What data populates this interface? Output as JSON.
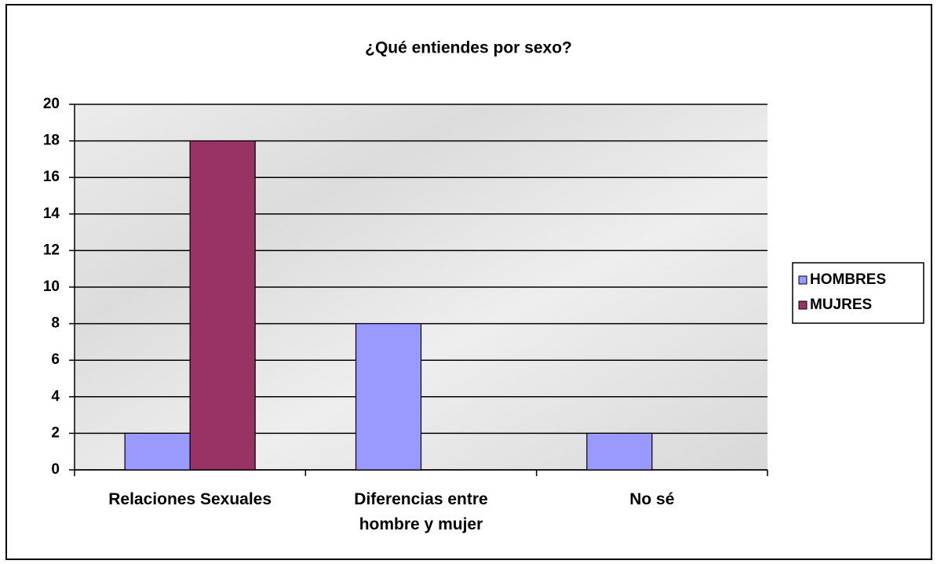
{
  "chart_data": {
    "type": "bar",
    "title": "¿Qué entiendes por sexo?",
    "categories": [
      "Relaciones Sexuales",
      "Diferencias entre hombre y mujer",
      "No sé"
    ],
    "series": [
      {
        "name": "HOMBRES",
        "color": "#9999ff",
        "values": [
          2,
          8,
          2
        ]
      },
      {
        "name": "MUJRES",
        "color": "#993366",
        "values": [
          18,
          0,
          0
        ]
      }
    ],
    "ylim": [
      0,
      20
    ],
    "yticks": [
      0,
      2,
      4,
      6,
      8,
      10,
      12,
      14,
      16,
      18,
      20
    ],
    "grid": true,
    "legend": "right"
  }
}
